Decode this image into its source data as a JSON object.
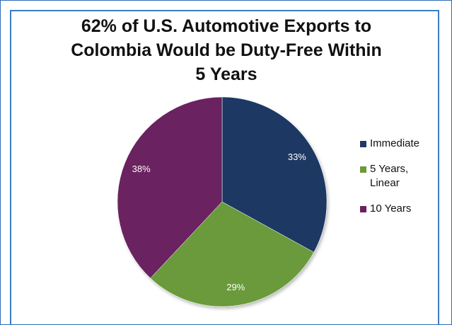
{
  "chart_data": {
    "type": "pie",
    "title_lines": [
      "62% of U.S. Automotive Exports to",
      "Colombia Would be Duty-Free Within",
      "5 Years"
    ],
    "slices": [
      {
        "label": "Immediate",
        "value": 33,
        "display": "33%",
        "color": "#1f3864"
      },
      {
        "label": "5 Years, Linear",
        "value": 29,
        "display": "29%",
        "color": "#6a9a3a"
      },
      {
        "label": "10 Years",
        "value": 38,
        "display": "38%",
        "color": "#6b2060"
      }
    ],
    "legend_position": "right",
    "start_angle_deg": -90,
    "direction": "clockwise"
  }
}
